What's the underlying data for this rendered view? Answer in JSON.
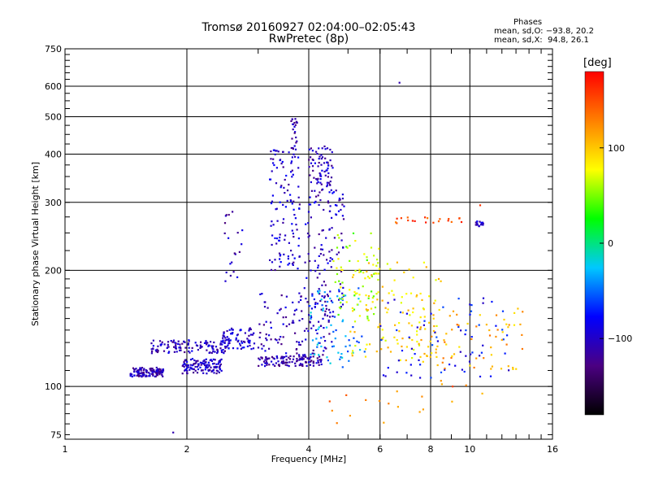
{
  "header": {
    "title": "Tromsø 20160927 02:04:00–02:05:43",
    "subtitle": "RwPretec (8p)",
    "stats_title": "Phases",
    "stats_o": "mean, sd,O: −93.8, 20.2",
    "stats_x": "mean, sd,X:  94.8, 26.1"
  },
  "colorbar": {
    "unit": "[deg]",
    "ticks": [
      {
        "value": 100,
        "label": "100"
      },
      {
        "value": 0,
        "label": "0"
      },
      {
        "value": -100,
        "label": "−100"
      }
    ],
    "range": [
      -180,
      180
    ],
    "colors": [
      "#000000",
      "#4b0082",
      "#0000ff",
      "#00c8ff",
      "#00ff00",
      "#ffff00",
      "#ff8000",
      "#ff0000"
    ]
  },
  "chart_data": {
    "type": "scatter",
    "xlabel": "Frequency [MHz]",
    "ylabel": "Stationary phase Virtual Height [km]",
    "xscale": "log",
    "yscale": "log",
    "xlim": [
      1,
      16
    ],
    "ylim": [
      73,
      750
    ],
    "xticks": [
      1,
      2,
      4,
      6,
      8,
      10,
      16
    ],
    "xtick_labels": [
      "1",
      "2",
      "4",
      "6",
      "8",
      "10",
      "16"
    ],
    "yticks": [
      75,
      100,
      200,
      300,
      400,
      500,
      600,
      750
    ],
    "ytick_labels": [
      "75",
      "100",
      "200",
      "300",
      "400",
      "500",
      "600",
      "750"
    ],
    "grid": true,
    "color_encoding": "phase [deg]",
    "clusters": [
      {
        "x_range": [
          1.45,
          1.75
        ],
        "y_range": [
          106,
          112
        ],
        "phase": -110,
        "density": "high"
      },
      {
        "x_range": [
          1.63,
          2.55
        ],
        "y_range": [
          122,
          132
        ],
        "phase": -105,
        "density": "high"
      },
      {
        "x_range": [
          1.95,
          2.45
        ],
        "y_range": [
          108,
          118
        ],
        "phase": -100,
        "density": "high"
      },
      {
        "x_range": [
          2.45,
          2.95
        ],
        "y_range": [
          125,
          142
        ],
        "phase": -95,
        "density": "medium"
      },
      {
        "x_range": [
          2.45,
          2.75
        ],
        "y_range": [
          185,
          285
        ],
        "phase": -110,
        "density": "low"
      },
      {
        "x_range": [
          3.0,
          4.3
        ],
        "y_range": [
          113,
          120
        ],
        "phase": -110,
        "density": "high"
      },
      {
        "x_range": [
          3.0,
          4.6
        ],
        "y_range": [
          120,
          175
        ],
        "phase": -105,
        "density": "high"
      },
      {
        "x_range": [
          3.2,
          3.8
        ],
        "y_range": [
          200,
          420
        ],
        "phase": -100,
        "density": "high"
      },
      {
        "x_range": [
          3.6,
          3.75
        ],
        "y_range": [
          420,
          495
        ],
        "phase": -110,
        "density": "low"
      },
      {
        "x_range": [
          3.9,
          4.9
        ],
        "y_range": [
          150,
          330
        ],
        "phase": -100,
        "density": "high"
      },
      {
        "x_range": [
          4.0,
          4.6
        ],
        "y_range": [
          330,
          420
        ],
        "phase": -105,
        "density": "medium"
      },
      {
        "x_range": [
          4.0,
          5.5
        ],
        "y_range": [
          112,
          180
        ],
        "phase": -40,
        "density": "medium"
      },
      {
        "x_range": [
          4.6,
          6.0
        ],
        "y_range": [
          150,
          250
        ],
        "phase": 60,
        "density": "medium"
      },
      {
        "x_range": [
          5.0,
          8.5
        ],
        "y_range": [
          115,
          210
        ],
        "phase": 90,
        "density": "high"
      },
      {
        "x_range": [
          6.0,
          12.5
        ],
        "y_range": [
          105,
          170
        ],
        "phase": -80,
        "density": "medium"
      },
      {
        "x_range": [
          7.5,
          13.5
        ],
        "y_range": [
          110,
          160
        ],
        "phase": 110,
        "density": "medium"
      },
      {
        "x_range": [
          4.5,
          12.0
        ],
        "y_range": [
          80,
          105
        ],
        "phase": 130,
        "density": "low"
      },
      {
        "x_range": [
          6.5,
          10.0
        ],
        "y_range": [
          265,
          275
        ],
        "phase": 150,
        "density": "low"
      },
      {
        "x_range": [
          10.3,
          10.8
        ],
        "y_range": [
          260,
          268
        ],
        "phase": -100,
        "density": "low"
      }
    ],
    "points": [
      {
        "x": 6.7,
        "y": 613,
        "phase": -110
      },
      {
        "x": 1.85,
        "y": 76,
        "phase": -110
      },
      {
        "x": 10.6,
        "y": 295,
        "phase": 160
      }
    ]
  }
}
